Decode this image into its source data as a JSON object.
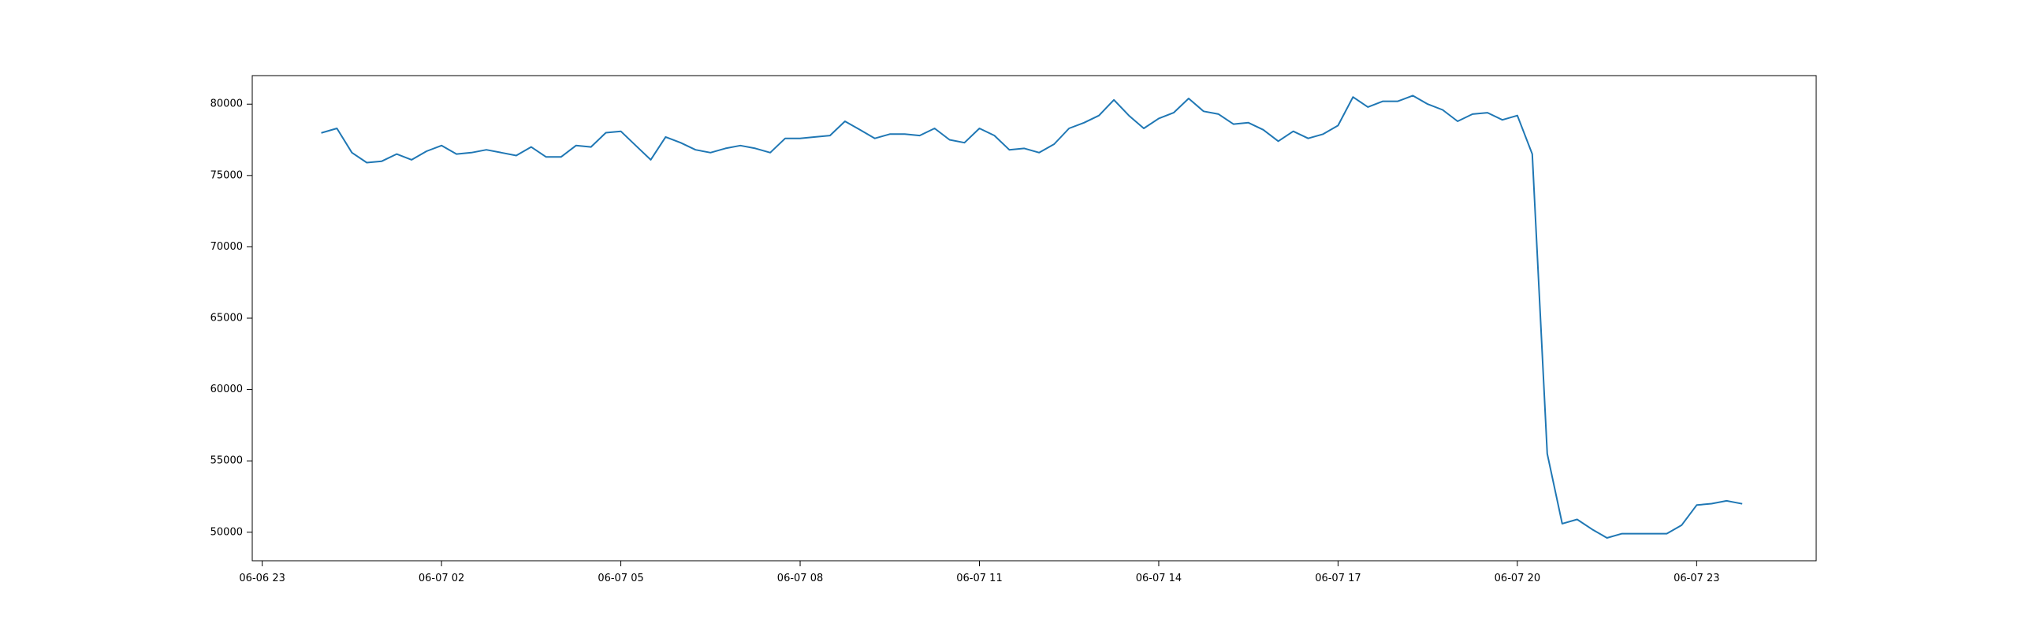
{
  "chart_data": {
    "type": "line",
    "title": "",
    "xlabel": "",
    "ylabel": "",
    "grid": false,
    "x_ticks": [
      "06-06 23",
      "06-07 02",
      "06-07 05",
      "06-07 08",
      "06-07 11",
      "06-07 14",
      "06-07 17",
      "06-07 20",
      "06-07 23"
    ],
    "y_ticks": [
      "50000",
      "55000",
      "60000",
      "65000",
      "70000",
      "75000",
      "80000"
    ],
    "xlim": [
      "2024-06-06 22:50",
      "2024-06-08 01:00"
    ],
    "ylim": [
      48000,
      82000
    ],
    "series": [
      {
        "color": "#1f77b4",
        "x": [
          "2024-06-07 00:00",
          "2024-06-07 00:15",
          "2024-06-07 00:30",
          "2024-06-07 00:45",
          "2024-06-07 01:00",
          "2024-06-07 01:15",
          "2024-06-07 01:30",
          "2024-06-07 01:45",
          "2024-06-07 02:00",
          "2024-06-07 02:15",
          "2024-06-07 02:30",
          "2024-06-07 02:45",
          "2024-06-07 03:00",
          "2024-06-07 03:15",
          "2024-06-07 03:30",
          "2024-06-07 03:45",
          "2024-06-07 04:00",
          "2024-06-07 04:15",
          "2024-06-07 04:30",
          "2024-06-07 04:45",
          "2024-06-07 05:00",
          "2024-06-07 05:15",
          "2024-06-07 05:30",
          "2024-06-07 05:45",
          "2024-06-07 06:00",
          "2024-06-07 06:15",
          "2024-06-07 06:30",
          "2024-06-07 06:45",
          "2024-06-07 07:00",
          "2024-06-07 07:15",
          "2024-06-07 07:30",
          "2024-06-07 07:45",
          "2024-06-07 08:00",
          "2024-06-07 08:15",
          "2024-06-07 08:30",
          "2024-06-07 08:45",
          "2024-06-07 09:00",
          "2024-06-07 09:15",
          "2024-06-07 09:30",
          "2024-06-07 09:45",
          "2024-06-07 10:00",
          "2024-06-07 10:15",
          "2024-06-07 10:30",
          "2024-06-07 10:45",
          "2024-06-07 11:00",
          "2024-06-07 11:15",
          "2024-06-07 11:30",
          "2024-06-07 11:45",
          "2024-06-07 12:00",
          "2024-06-07 12:15",
          "2024-06-07 12:30",
          "2024-06-07 12:45",
          "2024-06-07 13:00",
          "2024-06-07 13:15",
          "2024-06-07 13:30",
          "2024-06-07 13:45",
          "2024-06-07 14:00",
          "2024-06-07 14:15",
          "2024-06-07 14:30",
          "2024-06-07 14:45",
          "2024-06-07 15:00",
          "2024-06-07 15:15",
          "2024-06-07 15:30",
          "2024-06-07 15:45",
          "2024-06-07 16:00",
          "2024-06-07 16:15",
          "2024-06-07 16:30",
          "2024-06-07 16:45",
          "2024-06-07 17:00",
          "2024-06-07 17:15",
          "2024-06-07 17:30",
          "2024-06-07 17:45",
          "2024-06-07 18:00",
          "2024-06-07 18:15",
          "2024-06-07 18:30",
          "2024-06-07 18:45",
          "2024-06-07 19:00",
          "2024-06-07 19:15",
          "2024-06-07 19:30",
          "2024-06-07 19:45",
          "2024-06-07 20:00",
          "2024-06-07 20:15",
          "2024-06-07 20:30",
          "2024-06-07 20:45",
          "2024-06-07 21:00",
          "2024-06-07 21:15",
          "2024-06-07 21:30",
          "2024-06-07 21:45",
          "2024-06-07 22:00",
          "2024-06-07 22:15",
          "2024-06-07 22:30",
          "2024-06-07 22:45",
          "2024-06-07 23:00",
          "2024-06-07 23:15",
          "2024-06-07 23:30",
          "2024-06-07 23:45"
        ],
        "y": [
          78000,
          78300,
          76600,
          75900,
          76000,
          76500,
          76100,
          76700,
          77100,
          76500,
          76600,
          76800,
          76600,
          76400,
          77000,
          76300,
          76300,
          77100,
          77000,
          78000,
          78100,
          77100,
          76100,
          77700,
          77300,
          76800,
          76600,
          76900,
          77100,
          76900,
          76600,
          77600,
          77600,
          77700,
          77800,
          78800,
          78200,
          77600,
          77900,
          77900,
          77800,
          78300,
          77500,
          77300,
          78300,
          77800,
          76800,
          76900,
          76600,
          77200,
          78300,
          78700,
          79200,
          80300,
          79200,
          78300,
          79000,
          79400,
          80400,
          79500,
          79300,
          78600,
          78700,
          78200,
          77400,
          78100,
          77600,
          77900,
          78500,
          80500,
          79800,
          80200,
          80200,
          80600,
          80000,
          79600,
          78800,
          79300,
          79400,
          78900,
          79200,
          76500,
          55500,
          50600,
          50900,
          50200,
          49600,
          49900,
          49900,
          49900,
          49900,
          50500,
          51900,
          52000,
          52200,
          52000
        ]
      }
    ]
  }
}
